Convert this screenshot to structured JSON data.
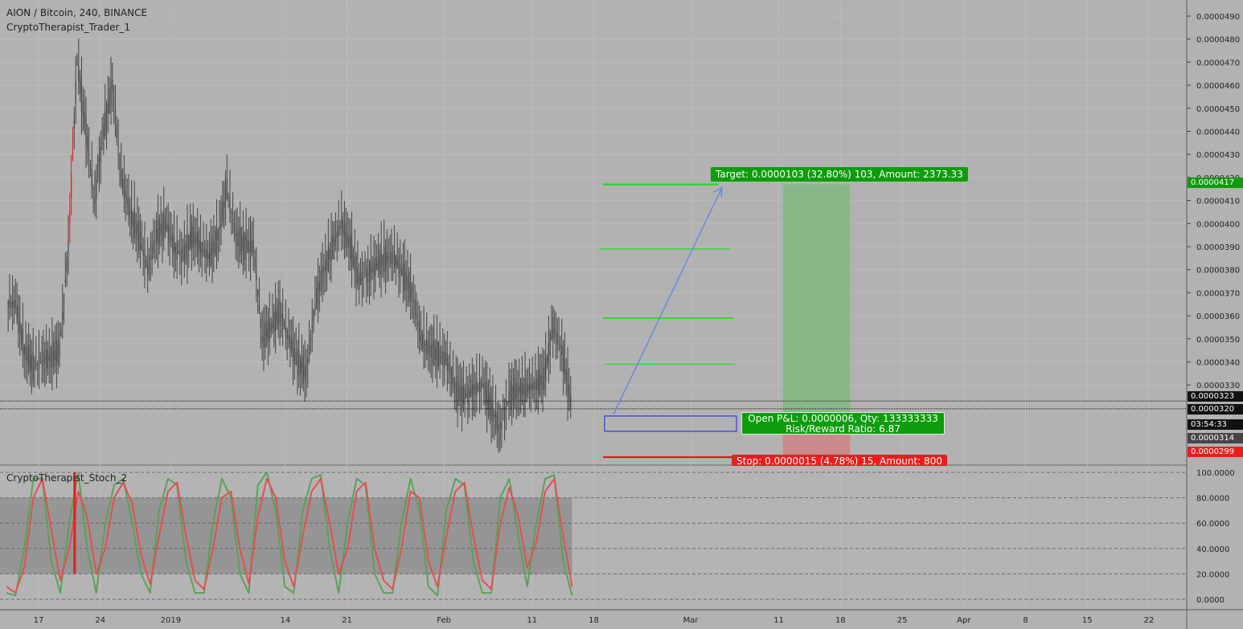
{
  "header": {
    "title": "AION / Bitcoin, 240, BINANCE",
    "indicator": "CryptoTherapist_Trader_1",
    "oscillator": "CryptoTherapist_Stoch_2"
  },
  "colors": {
    "background": "#b2b2b2",
    "candle": "#444444",
    "candle_highlight": "#e02020",
    "target_zone": "#86b886",
    "stop_zone": "#c88a8a",
    "target_line": "#10e010",
    "stop_line": "#ff0000",
    "entry_box": "#1a1aff",
    "arrow": "#6a8ad8",
    "stoch_k": "#5aa05a",
    "stoch_d": "#e05050"
  },
  "labels": {
    "target": "Target: 0.0000103 (32.80%) 103, Amount: 2373.33",
    "pnl_line1": "Open P&L: 0.0000006, Qty: 133333333",
    "pnl_line2": "Risk/Reward Ratio: 6.87",
    "stop": "Stop: 0.0000015 (4.78%) 15, Amount: 800"
  },
  "price_labels": {
    "target": "0.0000417",
    "last": "0.0000323",
    "current": "0.0000320",
    "countdown": "03:54:33",
    "entry": "0.0000314",
    "stop": "0.0000299"
  },
  "chart_data": [
    {
      "type": "candlestick",
      "title": "AION / Bitcoin, 240, BINANCE",
      "x_ticks": [
        "17",
        "24",
        "2019",
        "14",
        "21",
        "Feb",
        "11",
        "18",
        "Mar",
        "11",
        "18",
        "25",
        "Apr",
        "8",
        "15",
        "22"
      ],
      "y_ticks": [
        "0.0000330",
        "0.0000340",
        "0.0000350",
        "0.0000360",
        "0.0000370",
        "0.0000380",
        "0.0000390",
        "0.0000400",
        "0.0000410",
        "0.0000420",
        "0.0000430",
        "0.0000440",
        "0.0000450",
        "0.0000460",
        "0.0000470",
        "0.0000480",
        "0.0000490"
      ],
      "ylim": [
        2.945e-05,
        4.95e-05
      ],
      "x": [
        "2018-12-14",
        "2018-12-15",
        "2018-12-16",
        "2018-12-17",
        "2018-12-18",
        "2018-12-19",
        "2018-12-20",
        "2018-12-21",
        "2018-12-22",
        "2018-12-23",
        "2018-12-24",
        "2018-12-25",
        "2018-12-26",
        "2018-12-27",
        "2018-12-28",
        "2018-12-29",
        "2018-12-30",
        "2018-12-31",
        "2019-01-01",
        "2019-01-02",
        "2019-01-03",
        "2019-01-04",
        "2019-01-05",
        "2019-01-06",
        "2019-01-07",
        "2019-01-08",
        "2019-01-09",
        "2019-01-10",
        "2019-01-11",
        "2019-01-12",
        "2019-01-13",
        "2019-01-14",
        "2019-01-15",
        "2019-01-16",
        "2019-01-17",
        "2019-01-18",
        "2019-01-19",
        "2019-01-20",
        "2019-01-21",
        "2019-01-22",
        "2019-01-23",
        "2019-01-24",
        "2019-01-25",
        "2019-01-26",
        "2019-01-27",
        "2019-01-28",
        "2019-01-29",
        "2019-01-30",
        "2019-01-31",
        "2019-02-01",
        "2019-02-02",
        "2019-02-03",
        "2019-02-04",
        "2019-02-05",
        "2019-02-06",
        "2019-02-07",
        "2019-02-08",
        "2019-02-09",
        "2019-02-10",
        "2019-02-11",
        "2019-02-12",
        "2019-02-13",
        "2019-02-14",
        "2019-02-15"
      ],
      "close": [
        3.65e-05,
        3.45e-05,
        3.38e-05,
        3.4e-05,
        3.42e-05,
        3.45e-05,
        3.9e-05,
        4.7e-05,
        4.4e-05,
        4.1e-05,
        4.4e-05,
        4.6e-05,
        4.2e-05,
        4.05e-05,
        3.95e-05,
        3.8e-05,
        3.95e-05,
        4e-05,
        3.9e-05,
        3.85e-05,
        3.95e-05,
        3.9e-05,
        3.85e-05,
        3.95e-05,
        4.15e-05,
        3.95e-05,
        3.9e-05,
        3.9e-05,
        3.5e-05,
        3.55e-05,
        3.62e-05,
        3.5e-05,
        3.4e-05,
        3.35e-05,
        3.65e-05,
        3.8e-05,
        3.9e-05,
        4e-05,
        3.9e-05,
        3.75e-05,
        3.78e-05,
        3.82e-05,
        3.85e-05,
        3.85e-05,
        3.78e-05,
        3.7e-05,
        3.5e-05,
        3.45e-05,
        3.43e-05,
        3.4e-05,
        3.28e-05,
        3.25e-05,
        3.28e-05,
        3.3e-05,
        3.2e-05,
        3.1e-05,
        3.25e-05,
        3.28e-05,
        3.28e-05,
        3.3e-05,
        3.33e-05,
        3.55e-05,
        3.45e-05,
        3.23e-05
      ],
      "series": [
        {
          "name": "Target",
          "value": 4.17e-05
        },
        {
          "name": "Entry",
          "value": 3.14e-05
        },
        {
          "name": "Stop",
          "value": 2.99e-05
        }
      ],
      "grid": true
    },
    {
      "type": "line",
      "title": "CryptoTherapist_Stoch_2",
      "y_ticks": [
        "0.0000",
        "20.0000",
        "40.0000",
        "60.0000",
        "80.0000",
        "100.0000"
      ],
      "ylim": [
        0,
        100
      ],
      "band": [
        20,
        80
      ],
      "series": [
        {
          "values": [
            5,
            3,
            40,
            95,
            95,
            30,
            5,
            60,
            100,
            40,
            5,
            60,
            90,
            95,
            60,
            20,
            5,
            70,
            95,
            90,
            30,
            5,
            5,
            60,
            95,
            80,
            20,
            5,
            90,
            100,
            70,
            10,
            5,
            70,
            95,
            98,
            40,
            5,
            60,
            95,
            90,
            20,
            5,
            5,
            60,
            95,
            70,
            10,
            3,
            70,
            95,
            90,
            30,
            5,
            5,
            80,
            95,
            50,
            10,
            60,
            95,
            98,
            30,
            3
          ]
        },
        {
          "values": [
            10,
            5,
            25,
            80,
            95,
            55,
            15,
            40,
            85,
            65,
            20,
            40,
            80,
            92,
            75,
            35,
            12,
            50,
            85,
            92,
            50,
            15,
            8,
            40,
            80,
            85,
            40,
            12,
            65,
            95,
            80,
            30,
            10,
            50,
            85,
            95,
            60,
            20,
            40,
            85,
            92,
            40,
            15,
            8,
            40,
            85,
            80,
            30,
            10,
            50,
            85,
            92,
            50,
            15,
            8,
            60,
            88,
            65,
            25,
            45,
            85,
            95,
            50,
            10
          ]
        }
      ]
    }
  ]
}
